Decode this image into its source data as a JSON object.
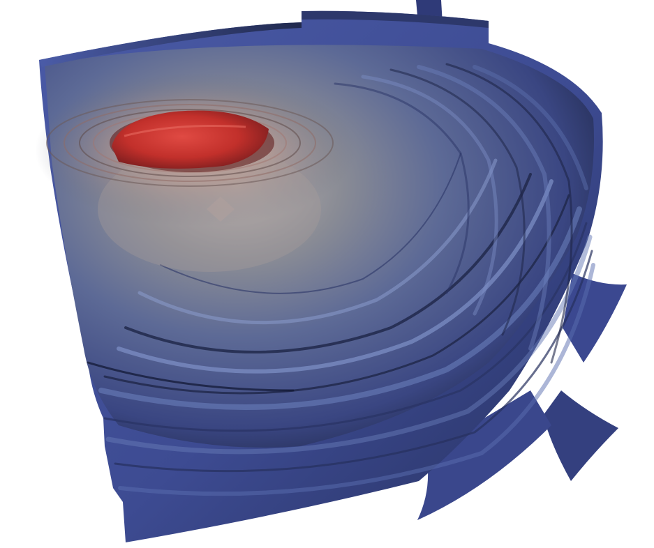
{
  "viewport": {
    "background": "#ffffff"
  },
  "scene": {
    "description_colors": {
      "core": "#c4302b",
      "shell_outer": "#3f4f95",
      "shell_mid": "#6378b3",
      "shell_dark": "#1f2748",
      "halo": "#a9a2a0"
    }
  }
}
